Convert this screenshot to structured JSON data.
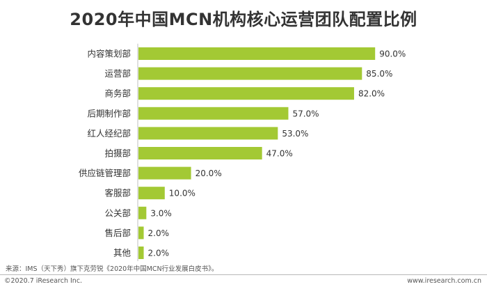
{
  "title": "2020年中国MCN机构核心运营团队配置比例",
  "chart_data": {
    "type": "bar",
    "orientation": "horizontal",
    "categories": [
      "内容策划部",
      "运营部",
      "商务部",
      "后期制作部",
      "红人经纪部",
      "拍摄部",
      "供应链管理部",
      "客服部",
      "公关部",
      "售后部",
      "其他"
    ],
    "values": [
      90.0,
      85.0,
      82.0,
      57.0,
      53.0,
      47.0,
      20.0,
      10.0,
      3.0,
      2.0,
      2.0
    ],
    "value_labels": [
      "90.0%",
      "85.0%",
      "82.0%",
      "57.0%",
      "53.0%",
      "47.0%",
      "20.0%",
      "10.0%",
      "3.0%",
      "2.0%",
      "2.0%"
    ],
    "xlim": [
      0,
      100
    ],
    "grid": false,
    "legend": "none",
    "bar_color": "#a3c934"
  },
  "footer": {
    "source": "来源：IMS（天下秀）旗下克劳锐《2020年中国MCN行业发展白皮书》。",
    "copyright": "©2020.7 iResearch Inc.",
    "website": "www.iresearch.com.cn"
  }
}
